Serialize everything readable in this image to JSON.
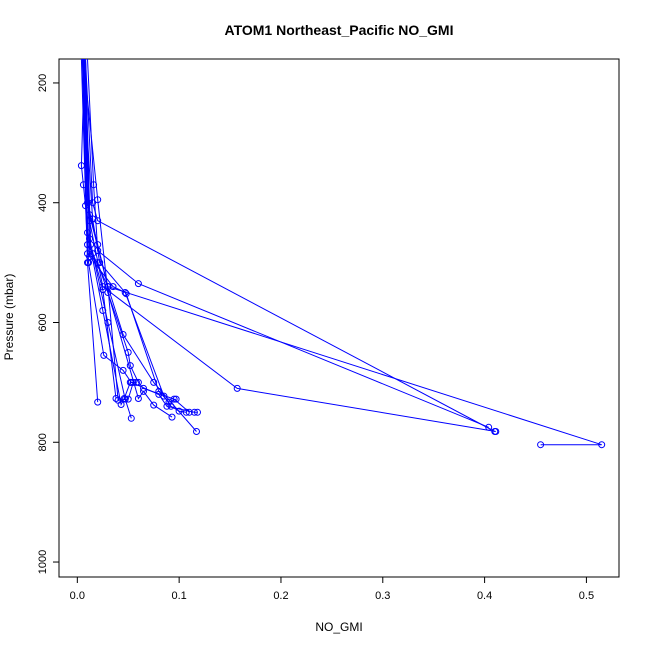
{
  "chart_data": {
    "type": "line",
    "title": "ATOM1 Northeast_Pacific NO_GMI",
    "xlabel": "NO_GMI",
    "ylabel": "Pressure (mbar)",
    "xlim": [
      -0.018,
      0.532
    ],
    "ylim": [
      1025,
      160
    ],
    "y_reversed": true,
    "xticks": [
      0.0,
      0.1,
      0.2,
      0.3,
      0.4,
      0.5
    ],
    "xtick_labels": [
      "0.0",
      "0.1",
      "0.2",
      "0.3",
      "0.4",
      "0.5"
    ],
    "yticks": [
      200,
      400,
      600,
      800,
      1000
    ],
    "ytick_labels": [
      "200",
      "400",
      "600",
      "800",
      "1000"
    ],
    "grid": false,
    "legend": "none",
    "series_color": "#0000ff",
    "marker": "open-circle",
    "series": [
      {
        "points": [
          [
            0.005,
            160
          ],
          [
            0.01,
            400
          ],
          [
            0.02,
            470
          ],
          [
            0.03,
            540
          ],
          [
            0.045,
            620
          ],
          [
            0.075,
            700
          ],
          [
            0.117,
            782
          ]
        ]
      },
      {
        "points": [
          [
            0.008,
            160
          ],
          [
            0.015,
            400
          ],
          [
            0.02,
            430
          ],
          [
            0.41,
            782
          ]
        ]
      },
      {
        "points": [
          [
            0.006,
            160
          ],
          [
            0.012,
            420
          ],
          [
            0.03,
            540
          ],
          [
            0.515,
            804
          ],
          [
            0.455,
            804
          ]
        ]
      },
      {
        "points": [
          [
            0.007,
            160
          ],
          [
            0.012,
            430
          ],
          [
            0.025,
            540
          ],
          [
            0.157,
            710
          ],
          [
            0.411,
            782
          ]
        ]
      },
      {
        "points": [
          [
            0.004,
            160
          ],
          [
            0.01,
            500
          ],
          [
            0.02,
            733
          ]
        ]
      },
      {
        "points": [
          [
            0.01,
            160
          ],
          [
            0.016,
            370
          ],
          [
            0.02,
            480
          ],
          [
            0.06,
            535
          ],
          [
            0.404,
            775
          ]
        ]
      },
      {
        "points": [
          [
            0.007,
            160
          ],
          [
            0.004,
            338
          ],
          [
            0.006,
            370
          ],
          [
            0.008,
            405
          ],
          [
            0.01,
            470
          ],
          [
            0.015,
            485
          ],
          [
            0.03,
            540
          ],
          [
            0.04,
            730
          ],
          [
            0.05,
            728
          ],
          [
            0.055,
            700
          ]
        ]
      },
      {
        "points": [
          [
            0.005,
            160
          ],
          [
            0.01,
            485
          ],
          [
            0.02,
            500
          ],
          [
            0.05,
            650
          ],
          [
            0.052,
            672
          ],
          [
            0.06,
            700
          ],
          [
            0.065,
            710
          ],
          [
            0.095,
            728
          ],
          [
            0.11,
            750
          ]
        ]
      },
      {
        "points": [
          [
            0.006,
            160
          ],
          [
            0.011,
            500
          ],
          [
            0.026,
            655
          ],
          [
            0.045,
            680
          ],
          [
            0.053,
            700
          ],
          [
            0.08,
            720
          ],
          [
            0.088,
            740
          ],
          [
            0.115,
            750
          ],
          [
            0.118,
            750
          ]
        ]
      },
      {
        "points": [
          [
            0.008,
            160
          ],
          [
            0.012,
            490
          ],
          [
            0.035,
            540
          ],
          [
            0.047,
            550
          ],
          [
            0.085,
            723
          ],
          [
            0.092,
            740
          ],
          [
            0.1,
            748
          ],
          [
            0.107,
            750
          ]
        ]
      },
      {
        "points": [
          [
            0.006,
            160
          ],
          [
            0.02,
            395
          ],
          [
            0.03,
            550
          ],
          [
            0.06,
            727
          ],
          [
            0.065,
            715
          ],
          [
            0.075,
            738
          ],
          [
            0.093,
            758
          ]
        ]
      },
      {
        "points": [
          [
            0.007,
            160
          ],
          [
            0.01,
            450
          ],
          [
            0.025,
            580
          ],
          [
            0.043,
            737
          ],
          [
            0.046,
            727
          ],
          [
            0.052,
            700
          ],
          [
            0.058,
            700
          ]
        ]
      },
      {
        "points": [
          [
            0.006,
            160
          ],
          [
            0.012,
            460
          ],
          [
            0.03,
            600
          ],
          [
            0.047,
            728
          ],
          [
            0.053,
            760
          ]
        ]
      },
      {
        "points": [
          [
            0.005,
            160
          ],
          [
            0.015,
            427
          ],
          [
            0.022,
            500
          ],
          [
            0.048,
            552
          ],
          [
            0.08,
            715
          ],
          [
            0.09,
            733
          ],
          [
            0.097,
            728
          ]
        ]
      },
      {
        "points": [
          [
            0.008,
            160
          ],
          [
            0.013,
            470
          ],
          [
            0.025,
            545
          ],
          [
            0.038,
            727
          ]
        ]
      }
    ]
  }
}
